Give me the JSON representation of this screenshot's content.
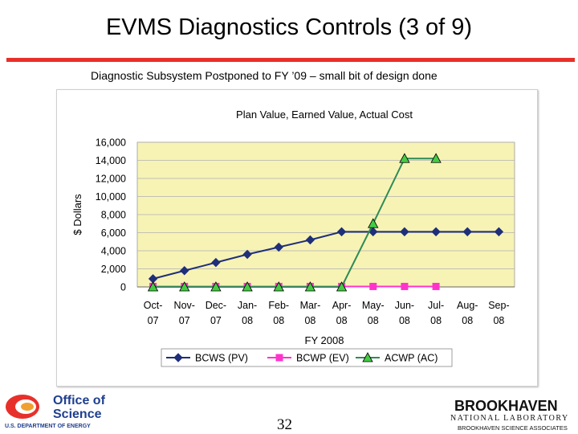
{
  "slide": {
    "title": "EVMS Diagnostics Controls (3 of 9)",
    "subtitle": "Diagnostic Subsystem Postponed to FY ’09 – small bit of design done",
    "page_number": "32",
    "accent_color": "#e8302a"
  },
  "logos": {
    "doe": {
      "line1": "Office of",
      "line2": "Science",
      "line3": "U.S. DEPARTMENT OF ENERGY"
    },
    "bnl": {
      "line1": "BROOKHAVEN",
      "line2": "NATIONAL LABORATORY",
      "line3": "BROOKHAVEN SCIENCE ASSOCIATES"
    }
  },
  "chart_data": {
    "type": "line",
    "title": "Plan Value, Earned Value, Actual Cost",
    "xlabel": "FY 2008",
    "ylabel": "$ Dollars",
    "categories": [
      "Oct-07",
      "Nov-07",
      "Dec-07",
      "Jan-08",
      "Feb-08",
      "Mar-08",
      "Apr-08",
      "May-08",
      "Jun-08",
      "Jul-08",
      "Aug-08",
      "Sep-08"
    ],
    "ylim": [
      0,
      16000
    ],
    "yticks": [
      "0",
      "2,000",
      "4,000",
      "6,000",
      "8,000",
      "10,000",
      "12,000",
      "14,000",
      "16,000"
    ],
    "grid": true,
    "plot_background": "#f7f3b5",
    "legend_position": "bottom",
    "series": [
      {
        "name": "BCWS (PV)",
        "color": "#1f2f7a",
        "marker": "diamond",
        "values": [
          900,
          1800,
          2700,
          3600,
          4400,
          5200,
          6100,
          6100,
          6100,
          6100,
          6100,
          6100
        ]
      },
      {
        "name": "BCWP (EV)",
        "color": "#ff33cc",
        "marker": "square",
        "values": [
          50,
          50,
          50,
          50,
          50,
          50,
          50,
          50,
          50,
          50,
          null,
          null
        ]
      },
      {
        "name": "ACWP (AC)",
        "color": "#2e8b57",
        "marker": "triangle",
        "marker_fill": "#44cc44",
        "values": [
          0,
          0,
          0,
          0,
          0,
          0,
          0,
          7000,
          14200,
          14200,
          null,
          null
        ]
      }
    ]
  }
}
